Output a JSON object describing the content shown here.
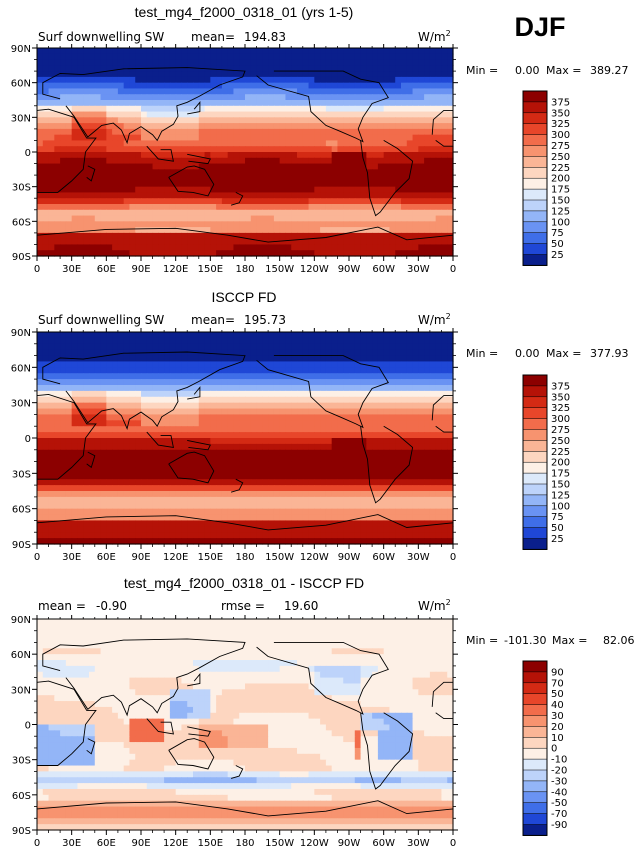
{
  "header": {
    "title": "test_mg4_f2000_0318_01 (yrs 1-5)",
    "season": "DJF"
  },
  "chart_data": [
    {
      "type": "heatmap",
      "title": "test_mg4_f2000_0318_01 (yrs 1-5)",
      "variable": "Surf downwelling SW",
      "units_base": "W/m",
      "units_exp": "2",
      "mean_label": "mean=",
      "mean": "194.83",
      "min_label": "Min =",
      "min": "0.00",
      "max_label": "Max =",
      "max": "389.27",
      "x_ticks": [
        "0",
        "30E",
        "60E",
        "90E",
        "120E",
        "150E",
        "180",
        "150W",
        "120W",
        "90W",
        "60W",
        "30W",
        "0"
      ],
      "y_ticks": [
        "90N",
        "60N",
        "30N",
        "0",
        "30S",
        "60S",
        "90S"
      ],
      "colorbar_levels": [
        "375",
        "350",
        "325",
        "300",
        "275",
        "250",
        "225",
        "200",
        "175",
        "150",
        "125",
        "100",
        "75",
        "50",
        "25"
      ],
      "colorbar_colors": [
        "#8c0000",
        "#b51207",
        "#d42a14",
        "#e8462a",
        "#f26c4b",
        "#f7936f",
        "#fab596",
        "#fdd6c0",
        "#fdf0e6",
        "#dce9fa",
        "#bdd3fa",
        "#93b5f7",
        "#6a93f3",
        "#3f6ee8",
        "#1f47d6",
        "#0a1f8c"
      ],
      "field": "model"
    },
    {
      "type": "heatmap",
      "title": "ISCCP FD",
      "variable": "Surf downwelling SW",
      "units_base": "W/m",
      "units_exp": "2",
      "mean_label": "mean=",
      "mean": "195.73",
      "min_label": "Min =",
      "min": "0.00",
      "max_label": "Max =",
      "max": "377.93",
      "x_ticks": [
        "0",
        "30E",
        "60E",
        "90E",
        "120E",
        "150E",
        "180",
        "150W",
        "120W",
        "90W",
        "60W",
        "30W",
        "0"
      ],
      "y_ticks": [
        "90N",
        "60N",
        "30N",
        "0",
        "30S",
        "60S",
        "90S"
      ],
      "colorbar_levels": [
        "375",
        "350",
        "325",
        "300",
        "275",
        "250",
        "225",
        "200",
        "175",
        "150",
        "125",
        "100",
        "75",
        "50",
        "25"
      ],
      "colorbar_colors": [
        "#8c0000",
        "#b51207",
        "#d42a14",
        "#e8462a",
        "#f26c4b",
        "#f7936f",
        "#fab596",
        "#fdd6c0",
        "#fdf0e6",
        "#dce9fa",
        "#bdd3fa",
        "#93b5f7",
        "#6a93f3",
        "#3f6ee8",
        "#1f47d6",
        "#0a1f8c"
      ],
      "field": "obs"
    },
    {
      "type": "heatmap",
      "title": "test_mg4_f2000_0318_01 - ISCCP FD",
      "variable": "",
      "units_base": "W/m",
      "units_exp": "2",
      "mean_label": "mean =",
      "mean": "-0.90",
      "rmse_label": "rmse =",
      "rmse": "19.60",
      "min_label": "Min =",
      "min": "-101.30",
      "max_label": "Max =",
      "max": "82.06",
      "x_ticks": [
        "0",
        "30E",
        "60E",
        "90E",
        "120E",
        "150E",
        "180",
        "150W",
        "120W",
        "90W",
        "60W",
        "30W",
        "0"
      ],
      "y_ticks": [
        "90N",
        "60N",
        "30N",
        "0",
        "30S",
        "60S",
        "90S"
      ],
      "colorbar_levels": [
        "90",
        "70",
        "50",
        "40",
        "30",
        "20",
        "10",
        "0",
        "-10",
        "-20",
        "-30",
        "-40",
        "-50",
        "-70",
        "-90"
      ],
      "colorbar_colors": [
        "#8c0000",
        "#b51207",
        "#d42a14",
        "#e8462a",
        "#f26c4b",
        "#f7936f",
        "#fab596",
        "#fdd6c0",
        "#fdf0e6",
        "#dce9fa",
        "#bdd3fa",
        "#93b5f7",
        "#6a93f3",
        "#3f6ee8",
        "#1f47d6",
        "#0a1f8c"
      ],
      "field": "diff"
    }
  ]
}
